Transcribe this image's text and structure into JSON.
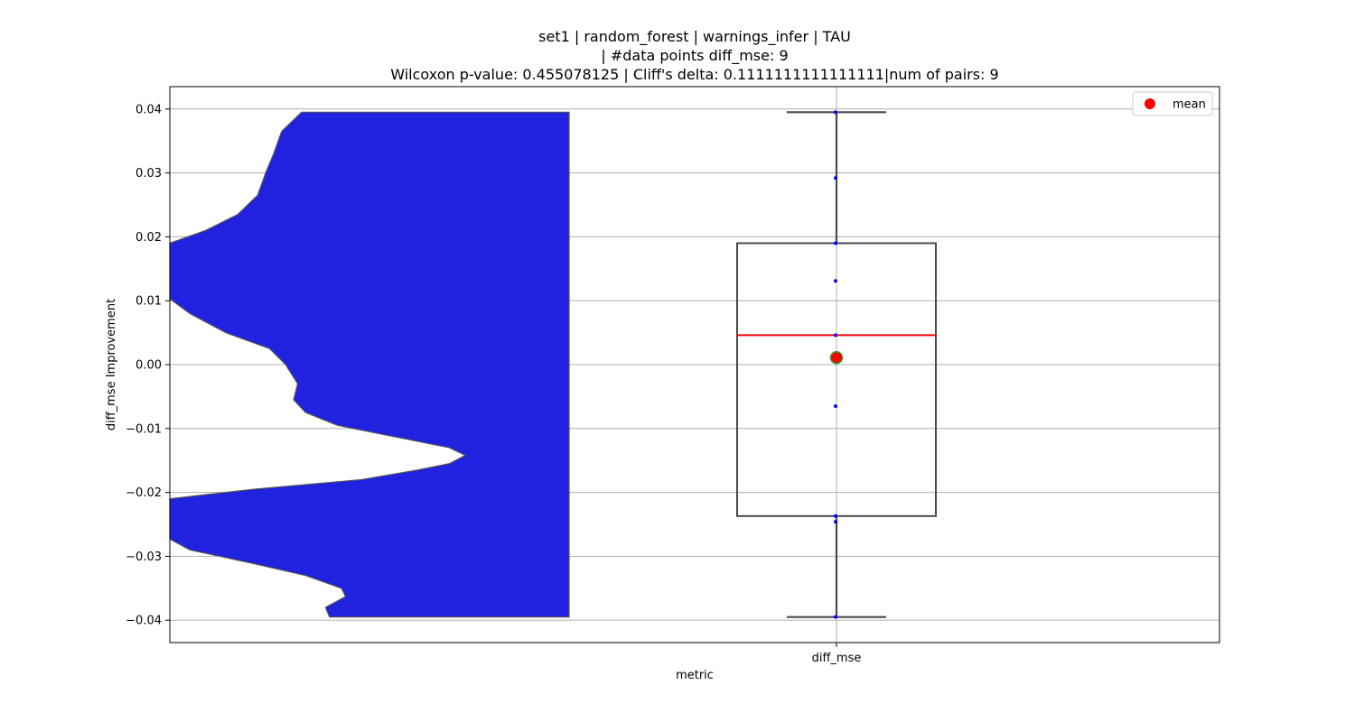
{
  "chart_data": {
    "type": "violin+box",
    "title_lines": [
      "set1 | random_forest | warnings_infer | TAU",
      "| #data points diff_mse: 9",
      "Wilcoxon p-value: 0.455078125 | Cliff's delta: 0.1111111111111111|num of pairs: 9"
    ],
    "xlabel": "metric",
    "ylabel": "diff_mse Improvement",
    "ylim": [
      -0.0435,
      0.0435
    ],
    "grid": true,
    "categories": [
      "diff_mse"
    ],
    "y_ticks": [
      -0.04,
      -0.03,
      -0.02,
      -0.01,
      0.0,
      0.01,
      0.02,
      0.03,
      0.04
    ],
    "y_tick_labels": [
      "−0.04",
      "−0.03",
      "−0.02",
      "−0.01",
      "0.00",
      "0.01",
      "0.02",
      "0.03",
      "0.04"
    ],
    "legend": {
      "placement": "top-right",
      "entries": [
        {
          "label": "mean",
          "color": "#ff0000"
        }
      ]
    },
    "violin": {
      "color": "#2121e0",
      "edge_color": "#555555",
      "range": [
        -0.0395,
        0.0395
      ],
      "density_profile": [
        [
          -0.0395,
          0.4
        ],
        [
          -0.038,
          0.39
        ],
        [
          -0.0363,
          0.44
        ],
        [
          -0.035,
          0.43
        ],
        [
          -0.033,
          0.34
        ],
        [
          -0.031,
          0.2
        ],
        [
          -0.029,
          0.05
        ],
        [
          -0.0273,
          0.0
        ],
        [
          -0.021,
          0.0
        ],
        [
          -0.0195,
          0.21
        ],
        [
          -0.018,
          0.48
        ],
        [
          -0.0165,
          0.62
        ],
        [
          -0.0155,
          0.7
        ],
        [
          -0.0142,
          0.74
        ],
        [
          -0.013,
          0.7
        ],
        [
          -0.0115,
          0.58
        ],
        [
          -0.0095,
          0.42
        ],
        [
          -0.0075,
          0.34
        ],
        [
          -0.0055,
          0.31
        ],
        [
          -0.003,
          0.32
        ],
        [
          0.0,
          0.29
        ],
        [
          0.0025,
          0.25
        ],
        [
          0.005,
          0.14
        ],
        [
          0.008,
          0.05
        ],
        [
          0.0103,
          0.0
        ],
        [
          0.019,
          0.0
        ],
        [
          0.021,
          0.09
        ],
        [
          0.0235,
          0.17
        ],
        [
          0.0265,
          0.22
        ],
        [
          0.03,
          0.24
        ],
        [
          0.033,
          0.26
        ],
        [
          0.0365,
          0.28
        ],
        [
          0.0395,
          0.33
        ]
      ]
    },
    "box": {
      "q1": -0.0237,
      "median": 0.0046,
      "q3": 0.019,
      "whisker_low": -0.0395,
      "whisker_high": 0.0395,
      "mean": 0.0011,
      "box_color": "#4a4a4a",
      "median_color": "#ff0000",
      "mean_color": "#ff0000",
      "mean_edge_color": "#2ca02c"
    },
    "points": {
      "color": "#0000ff",
      "values": [
        0.0395,
        0.0292,
        0.019,
        0.0131,
        0.0046,
        -0.0065,
        -0.0237,
        -0.0246,
        -0.0395
      ]
    }
  }
}
